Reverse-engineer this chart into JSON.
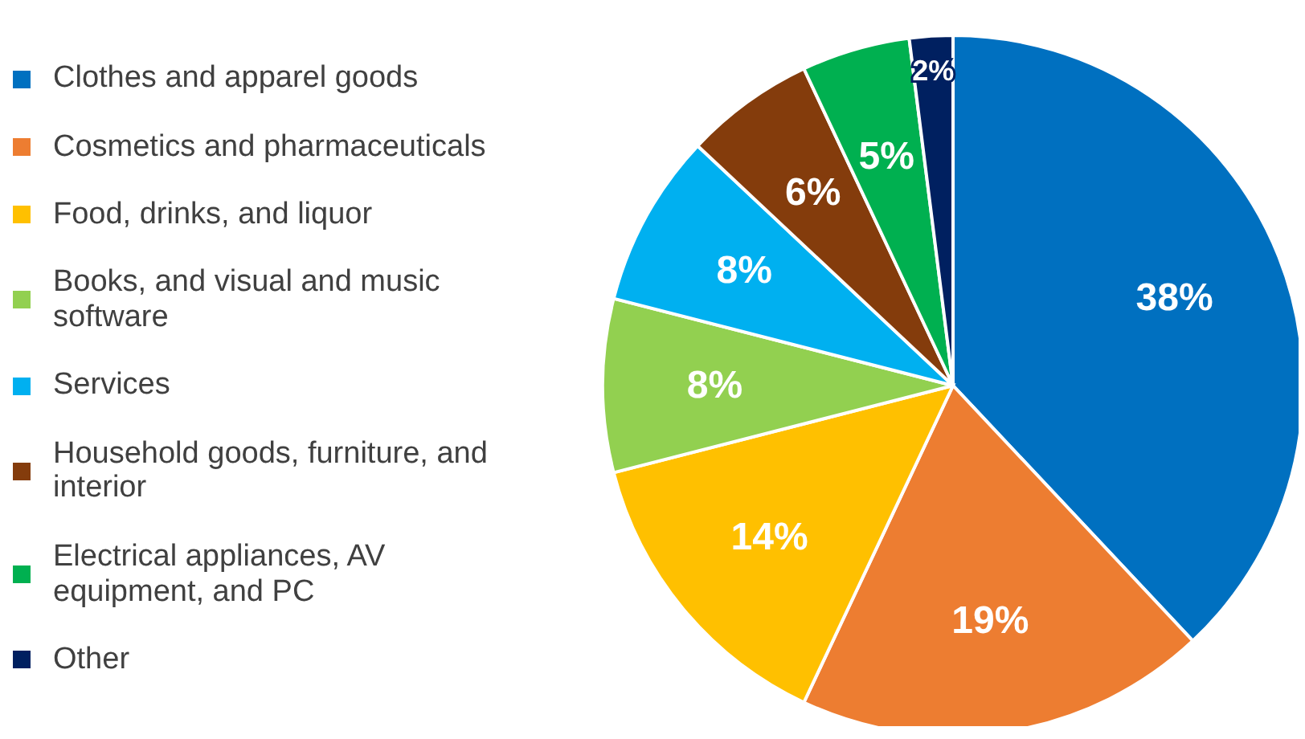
{
  "chart_data": {
    "type": "pie",
    "categories": [
      "Clothes and apparel goods",
      "Cosmetics and pharmaceuticals",
      "Food, drinks, and liquor",
      "Books, and visual and music software",
      "Services",
      "Household goods, furniture, and interior",
      "Electrical appliances, AV equipment, and PC",
      "Other"
    ],
    "values": [
      38,
      19,
      14,
      8,
      8,
      6,
      5,
      2
    ],
    "colors": [
      "#0070c0",
      "#ed7d31",
      "#ffc000",
      "#92d050",
      "#00b0f0",
      "#843c0c",
      "#00b050",
      "#002060"
    ],
    "value_labels": [
      "38%",
      "19%",
      "14%",
      "8%",
      "8%",
      "6%",
      "5%",
      "2%"
    ],
    "legend": "left"
  }
}
